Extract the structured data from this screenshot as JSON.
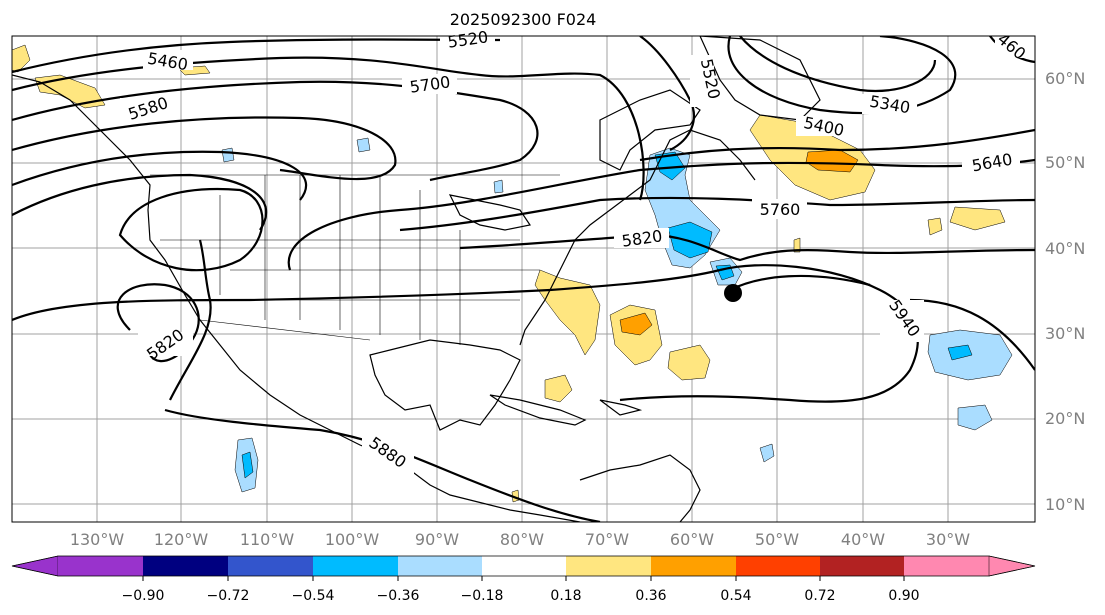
{
  "title": "2025092300 F024",
  "map": {
    "lat_labels": [
      "60°N",
      "50°N",
      "40°N",
      "30°N",
      "20°N",
      "10°N"
    ],
    "lon_labels": [
      "130°W",
      "120°W",
      "110°W",
      "100°W",
      "90°W",
      "80°W",
      "70°W",
      "60°W",
      "50°W",
      "40°W",
      "30°W"
    ],
    "contour_labels": [
      "5460",
      "5520",
      "5580",
      "5700",
      "5520",
      "460",
      "5340",
      "5400",
      "5640",
      "5760",
      "5820",
      "5820",
      "5940",
      "5880"
    ],
    "marker": "storm-position"
  },
  "colorbar": {
    "levels": [
      "−0.90",
      "−0.72",
      "−0.54",
      "−0.36",
      "−0.18",
      "0.18",
      "0.36",
      "0.54",
      "0.72",
      "0.90"
    ],
    "colors": [
      "#9933cc",
      "#000080",
      "#3355cc",
      "#00bbff",
      "#aaddff",
      "#ffffff",
      "#ffe680",
      "#ffa000",
      "#ff4000",
      "#b22222",
      "#ff88b0"
    ]
  }
}
